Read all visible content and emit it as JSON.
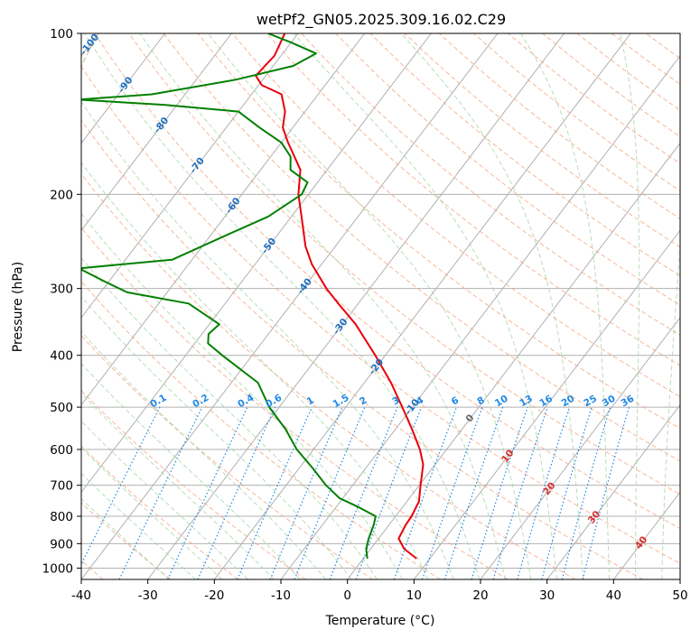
{
  "chart_data": {
    "type": "line",
    "chart_kind": "skew-T log-p diagram",
    "title": "wetPf2_GN05.2025.309.16.02.C29",
    "xlabel": "Temperature (°C)",
    "ylabel": "Pressure (hPa)",
    "xlim": [
      -40,
      50
    ],
    "ylim": [
      1050,
      100
    ],
    "y_scale": "log",
    "skew": true,
    "grid": true,
    "x_ticks": [
      -40,
      -30,
      -20,
      -10,
      0,
      10,
      20,
      30,
      40,
      50
    ],
    "y_ticks": [
      100,
      200,
      300,
      400,
      500,
      600,
      700,
      800,
      900,
      1000
    ],
    "colors": {
      "temperature": "#e8000b",
      "dewpoint": "#008000",
      "isotherm": "#b0b0b0",
      "isobar": "#b0b0b0",
      "dry_adiabat": "#f4a582",
      "moist_adiabat": "#9fd49f",
      "mixing_ratio": "#1e88e5",
      "contour_label_blue": "#1f6fbf",
      "contour_label_red": "#d32f2f",
      "contour_label_gray": "#666666",
      "dendritic": "#d2b48c"
    },
    "series": [
      {
        "key": "temperature",
        "points": [
          {
            "p": 960,
            "t": 8.0
          },
          {
            "p": 920,
            "t": 5.0
          },
          {
            "p": 880,
            "t": 3.0
          },
          {
            "p": 830,
            "t": 2.5
          },
          {
            "p": 800,
            "t": 2.4
          },
          {
            "p": 750,
            "t": 1.8
          },
          {
            "p": 700,
            "t": 0.2
          },
          {
            "p": 640,
            "t": -1.8
          },
          {
            "p": 600,
            "t": -4.0
          },
          {
            "p": 550,
            "t": -7.5
          },
          {
            "p": 500,
            "t": -11.5
          },
          {
            "p": 450,
            "t": -16.0
          },
          {
            "p": 400,
            "t": -21.5
          },
          {
            "p": 350,
            "t": -28.0
          },
          {
            "p": 320,
            "t": -33.0
          },
          {
            "p": 300,
            "t": -36.5
          },
          {
            "p": 270,
            "t": -41.5
          },
          {
            "p": 250,
            "t": -44.5
          },
          {
            "p": 220,
            "t": -48.5
          },
          {
            "p": 200,
            "t": -51.5
          },
          {
            "p": 180,
            "t": -54.0
          },
          {
            "p": 160,
            "t": -59.0
          },
          {
            "p": 150,
            "t": -61.5
          },
          {
            "p": 140,
            "t": -63.0
          },
          {
            "p": 130,
            "t": -65.5
          },
          {
            "p": 125,
            "t": -69.5
          },
          {
            "p": 120,
            "t": -71.5
          },
          {
            "p": 110,
            "t": -71.0
          },
          {
            "p": 100,
            "t": -72.0
          }
        ]
      },
      {
        "key": "dewpoint",
        "points": [
          {
            "p": 960,
            "t": 0.6
          },
          {
            "p": 920,
            "t": -0.7
          },
          {
            "p": 880,
            "t": -1.5
          },
          {
            "p": 830,
            "t": -2.3
          },
          {
            "p": 800,
            "t": -3.0
          },
          {
            "p": 770,
            "t": -6.5
          },
          {
            "p": 740,
            "t": -10.5
          },
          {
            "p": 700,
            "t": -14.0
          },
          {
            "p": 650,
            "t": -18.0
          },
          {
            "p": 600,
            "t": -22.5
          },
          {
            "p": 550,
            "t": -26.5
          },
          {
            "p": 500,
            "t": -31.5
          },
          {
            "p": 450,
            "t": -36.0
          },
          {
            "p": 420,
            "t": -41.0
          },
          {
            "p": 400,
            "t": -44.5
          },
          {
            "p": 380,
            "t": -48.0
          },
          {
            "p": 365,
            "t": -49.0
          },
          {
            "p": 350,
            "t": -48.5
          },
          {
            "p": 320,
            "t": -55.5
          },
          {
            "p": 305,
            "t": -66.0
          },
          {
            "p": 290,
            "t": -71.0
          },
          {
            "p": 275,
            "t": -76.0
          },
          {
            "p": 265,
            "t": -63.0
          },
          {
            "p": 240,
            "t": -58.0
          },
          {
            "p": 220,
            "t": -53.5
          },
          {
            "p": 200,
            "t": -51.0
          },
          {
            "p": 190,
            "t": -51.5
          },
          {
            "p": 180,
            "t": -55.5
          },
          {
            "p": 170,
            "t": -57.0
          },
          {
            "p": 160,
            "t": -60.0
          },
          {
            "p": 150,
            "t": -65.0
          },
          {
            "p": 140,
            "t": -70.0
          },
          {
            "p": 136,
            "t": -82.0
          },
          {
            "p": 133,
            "t": -95.5
          },
          {
            "p": 130,
            "t": -85.0
          },
          {
            "p": 122,
            "t": -74.0
          },
          {
            "p": 115,
            "t": -67.0
          },
          {
            "p": 109,
            "t": -65.0
          },
          {
            "p": 104,
            "t": -70.0
          },
          {
            "p": 100,
            "t": -74.5
          }
        ]
      }
    ],
    "isotherm_labels": {
      "values": [
        -100,
        -90,
        -80,
        -70,
        -60,
        -50,
        -40,
        -30,
        -20,
        -10,
        0,
        10,
        20,
        30,
        40
      ],
      "text": [
        "-100",
        "-90",
        "-80",
        "-70",
        "-60",
        "-50",
        "-40",
        "-30",
        "-20",
        "-10",
        "0",
        "10",
        "20",
        "30",
        "40"
      ]
    },
    "mixing_ratio_labels": {
      "values": [
        0.1,
        0.2,
        0.4,
        0.6,
        1,
        1.5,
        2,
        3,
        4,
        6,
        8,
        10,
        13,
        16,
        20,
        25,
        30,
        36
      ],
      "text": [
        "0.1",
        "0.2",
        "0.4",
        "0.6",
        "1",
        "1.5",
        "2",
        "3",
        "4",
        "6",
        "8",
        "10",
        "13",
        "16",
        "20",
        "25",
        "30",
        "36"
      ]
    }
  }
}
